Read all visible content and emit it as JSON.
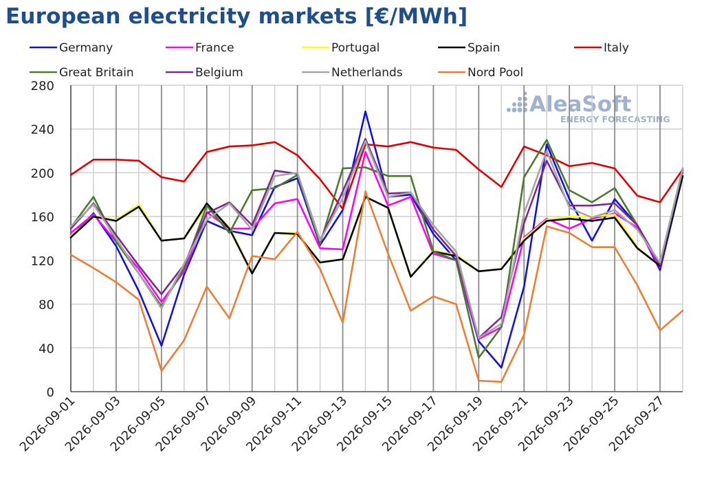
{
  "title": "European electricity markets [€/MWh]",
  "watermark": {
    "brand": "AleaSoft",
    "tagline": "ENERGY FORECASTING",
    "color": "#9fb3cf"
  },
  "chart_data": {
    "type": "line",
    "title": "European electricity markets [€/MWh]",
    "xlabel": "",
    "ylabel": "",
    "ylim": [
      0,
      280
    ],
    "yticks": [
      0,
      40,
      80,
      120,
      160,
      200,
      240,
      280
    ],
    "grid": true,
    "legend_position": "top",
    "x": [
      "2026-09-01",
      "2026-09-02",
      "2026-09-03",
      "2026-09-04",
      "2026-09-05",
      "2026-09-06",
      "2026-09-07",
      "2026-09-08",
      "2026-09-09",
      "2026-09-10",
      "2026-09-11",
      "2026-09-12",
      "2026-09-13",
      "2026-09-14",
      "2026-09-15",
      "2026-09-16",
      "2026-09-17",
      "2026-09-18",
      "2026-09-19",
      "2026-09-20",
      "2026-09-21",
      "2026-09-22",
      "2026-09-23",
      "2026-09-24",
      "2026-09-25",
      "2026-09-26",
      "2026-09-27",
      "2026-09-28"
    ],
    "xtick_labels": [
      "2026-09-01",
      "2026-09-03",
      "2026-09-05",
      "2026-09-07",
      "2026-09-09",
      "2026-09-11",
      "2026-09-13",
      "2026-09-15",
      "2026-09-17",
      "2026-09-19",
      "2026-09-21",
      "2026-09-23",
      "2026-09-25",
      "2026-09-27"
    ],
    "series": [
      {
        "name": "Germany",
        "color": "#1010e0",
        "values": [
          141,
          163,
          133,
          92,
          42,
          107,
          156,
          147,
          143,
          187,
          195,
          134,
          166,
          256,
          178,
          180,
          144,
          120,
          46,
          22,
          96,
          226,
          176,
          138,
          176,
          152,
          111,
          197
        ]
      },
      {
        "name": "France",
        "color": "#ff00ff",
        "values": [
          145,
          162,
          137,
          112,
          82,
          110,
          164,
          149,
          149,
          172,
          176,
          131,
          130,
          219,
          170,
          178,
          126,
          120,
          48,
          59,
          141,
          158,
          149,
          158,
          163,
          150,
          114,
          200
        ]
      },
      {
        "name": "Portugal",
        "color": "#ffff00",
        "values": [
          142,
          160,
          157,
          171,
          138,
          140,
          170,
          150,
          108,
          145,
          145,
          118,
          121,
          178,
          168,
          105,
          129,
          125,
          110,
          112,
          140,
          157,
          160,
          160,
          162,
          132,
          115,
          198
        ]
      },
      {
        "name": "Spain",
        "color": "#000000",
        "values": [
          141,
          160,
          156,
          169,
          138,
          140,
          172,
          149,
          108,
          145,
          144,
          118,
          121,
          178,
          168,
          105,
          128,
          124,
          110,
          112,
          138,
          156,
          158,
          156,
          159,
          131,
          115,
          197
        ]
      },
      {
        "name": "Italy",
        "color": "#e00000",
        "values": [
          198,
          212,
          212,
          211,
          196,
          192,
          219,
          224,
          225,
          228,
          216,
          194,
          167,
          226,
          224,
          228,
          223,
          221,
          203,
          187,
          224,
          216,
          206,
          209,
          204,
          179,
          173,
          203
        ]
      },
      {
        "name": "Great Britain",
        "color": "#4a7a2c",
        "values": [
          150,
          178,
          137,
          108,
          78,
          113,
          170,
          145,
          184,
          186,
          198,
          135,
          204,
          205,
          197,
          197,
          128,
          120,
          31,
          59,
          196,
          230,
          184,
          173,
          186,
          152,
          116,
          202
        ]
      },
      {
        "name": "Belgium",
        "color": "#7b2a8a",
        "values": [
          149,
          172,
          143,
          115,
          89,
          116,
          163,
          173,
          152,
          202,
          199,
          138,
          183,
          231,
          181,
          182,
          148,
          124,
          49,
          68,
          154,
          211,
          170,
          170,
          172,
          152,
          116,
          204
        ]
      },
      {
        "name": "Netherlands",
        "color": "#a6a6a6",
        "values": [
          151,
          171,
          140,
          108,
          76,
          117,
          157,
          172,
          148,
          197,
          200,
          138,
          177,
          229,
          178,
          182,
          152,
          128,
          49,
          62,
          163,
          220,
          168,
          159,
          166,
          148,
          118,
          204
        ]
      },
      {
        "name": "Nord Pool",
        "color": "#ed7d31",
        "values": [
          125,
          113,
          100,
          84,
          19,
          47,
          96,
          67,
          124,
          121,
          146,
          112,
          63,
          183,
          126,
          74,
          87,
          80,
          10,
          9,
          52,
          151,
          145,
          132,
          132,
          97,
          56,
          74
        ]
      }
    ]
  }
}
